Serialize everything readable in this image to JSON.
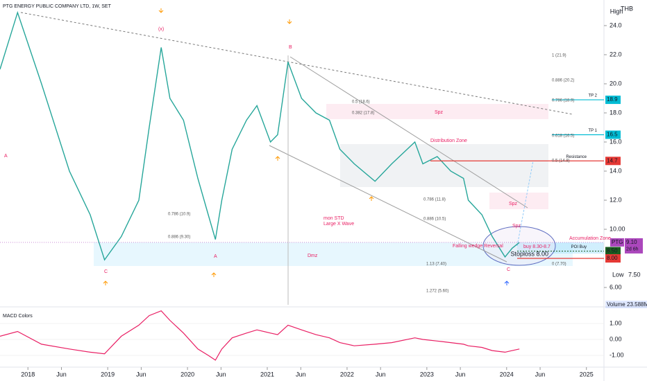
{
  "chart_data": {
    "type": "line",
    "title": "PTG ENERGY PUBLIC COMPANY LTD, 1W, SET",
    "currency": "THB",
    "high_label": "High",
    "low_label": "Low",
    "low_value": {
      "value": 7.5,
      "label": "7.50"
    },
    "volume_label": "Volume",
    "volume_value": "23.588M",
    "x": [
      2017.65,
      2017.87,
      2018.17,
      2018.52,
      2018.78,
      2018.96,
      2019.17,
      2019.39,
      2019.52,
      2019.67,
      2019.78,
      2019.95,
      2020.13,
      2020.26,
      2020.35,
      2020.43,
      2020.56,
      2020.74,
      2020.87,
      2021.04,
      2021.13,
      2021.26,
      2021.43,
      2021.61,
      2021.78,
      2021.91,
      2022.09,
      2022.35,
      2022.56,
      2022.85,
      2022.95,
      2023.13,
      2023.3,
      2023.46,
      2023.52,
      2023.69,
      2023.82,
      2023.98,
      2024.07,
      2024.16
    ],
    "series": [
      {
        "name": "PTG",
        "color": "#26a69a",
        "values": [
          21,
          24.9,
          20,
          14,
          11,
          7.9,
          9.5,
          12,
          17,
          22.5,
          19,
          17.5,
          13.5,
          11,
          9.3,
          12,
          15.5,
          17.5,
          18.5,
          16,
          16.5,
          21.5,
          19,
          18,
          17.5,
          15.5,
          14.5,
          13.3,
          14.5,
          16,
          14.5,
          15,
          14,
          13.5,
          12,
          11,
          9.5,
          8.1,
          8.7,
          9.1
        ]
      }
    ],
    "xlim": [
      2017.65,
      2025.22
    ],
    "xticks": [
      {
        "value": 2018,
        "label": "2018"
      },
      {
        "value": 2018.42,
        "label": "Jun"
      },
      {
        "value": 2019,
        "label": "2019"
      },
      {
        "value": 2019.42,
        "label": "Jun"
      },
      {
        "value": 2020,
        "label": "2020"
      },
      {
        "value": 2020.42,
        "label": "Jun"
      },
      {
        "value": 2021,
        "label": "2021"
      },
      {
        "value": 2021.42,
        "label": "Jun"
      },
      {
        "value": 2022,
        "label": "2022"
      },
      {
        "value": 2022.42,
        "label": "Jun"
      },
      {
        "value": 2023,
        "label": "2023"
      },
      {
        "value": 2023.42,
        "label": "Jun"
      },
      {
        "value": 2024,
        "label": "2024"
      },
      {
        "value": 2024.42,
        "label": "Jun"
      },
      {
        "value": 2025,
        "label": "2025"
      }
    ],
    "ylim": [
      4.81,
      25.76
    ],
    "yticks": [
      {
        "value": 24,
        "label": "24.0"
      },
      {
        "value": 22,
        "label": "22.0"
      },
      {
        "value": 20,
        "label": "20.0"
      },
      {
        "value": 18,
        "label": "18.0"
      },
      {
        "value": 16,
        "label": "16.0"
      },
      {
        "value": 14,
        "label": "14.0"
      },
      {
        "value": 12,
        "label": "12.0"
      },
      {
        "value": 10,
        "label": "10.00"
      },
      {
        "value": 6,
        "label": "6.00"
      }
    ],
    "current": {
      "name": "PTG",
      "value": 9.1,
      "label": "9.10",
      "countdown": "2d 6h"
    },
    "levels": [
      {
        "label": "TP 2",
        "value": 18.9,
        "tag": "18.9",
        "color": "#00bcd4"
      },
      {
        "label": "TP 1",
        "value": 16.5,
        "tag": "16.5",
        "color": "#00bcd4"
      },
      {
        "label": "Resistance",
        "value": 14.7,
        "tag": "14.7",
        "color": "#e53935"
      },
      {
        "label": "POI Buy",
        "value": 8.5,
        "tag": "8.50",
        "color": "#1b5e20"
      },
      {
        "label": "Stoploss 8.00",
        "value": 8.0,
        "tag": "8.00",
        "color": "#e53935"
      }
    ],
    "annotations": [
      "1 (21.9)",
      "0.886 (20.2)",
      "0.786 (18.9)",
      "0.618 (16.5)",
      "0.5 (14.8)",
      "0.5 (18.6)",
      "0.382 (17.8)",
      "0.786 (11.8)",
      "0.886 (10.5)",
      "0.786 (10.9)",
      "0.886 (9.30)",
      "1.13 (7.40)",
      "0 (7.70)",
      "1.272 (5.60)",
      "(x)",
      "B",
      "A",
      "A",
      "C",
      "C",
      "mon STD",
      "Large X Wave",
      "Falling wedge Reversal",
      "Distribution Zone",
      "Accumulation Zone",
      "Spz",
      "Spz",
      "Spz",
      "buy  8.30-8.7",
      "Dmz"
    ],
    "macd": {
      "title": "MACD Colors",
      "color": "#e91e63",
      "values": [
        0.2,
        0.5,
        -0.3,
        -0.6,
        -0.8,
        -0.9,
        0.2,
        0.9,
        1.5,
        1.8,
        1.2,
        0.4,
        -0.6,
        -1.0,
        -1.3,
        -0.6,
        0.1,
        0.4,
        0.6,
        0.4,
        0.3,
        0.9,
        0.6,
        0.3,
        0.1,
        -0.2,
        -0.4,
        -0.3,
        -0.2,
        0.1,
        0.0,
        -0.1,
        -0.2,
        -0.3,
        -0.4,
        -0.5,
        -0.7,
        -0.8,
        -0.7,
        -0.6
      ],
      "ylim": [
        -1.74,
        1.96
      ],
      "yticks": [
        {
          "value": 1,
          "label": "1.00"
        },
        {
          "value": 0,
          "label": "0.00"
        },
        {
          "value": -1,
          "label": "-1.00"
        }
      ]
    }
  }
}
